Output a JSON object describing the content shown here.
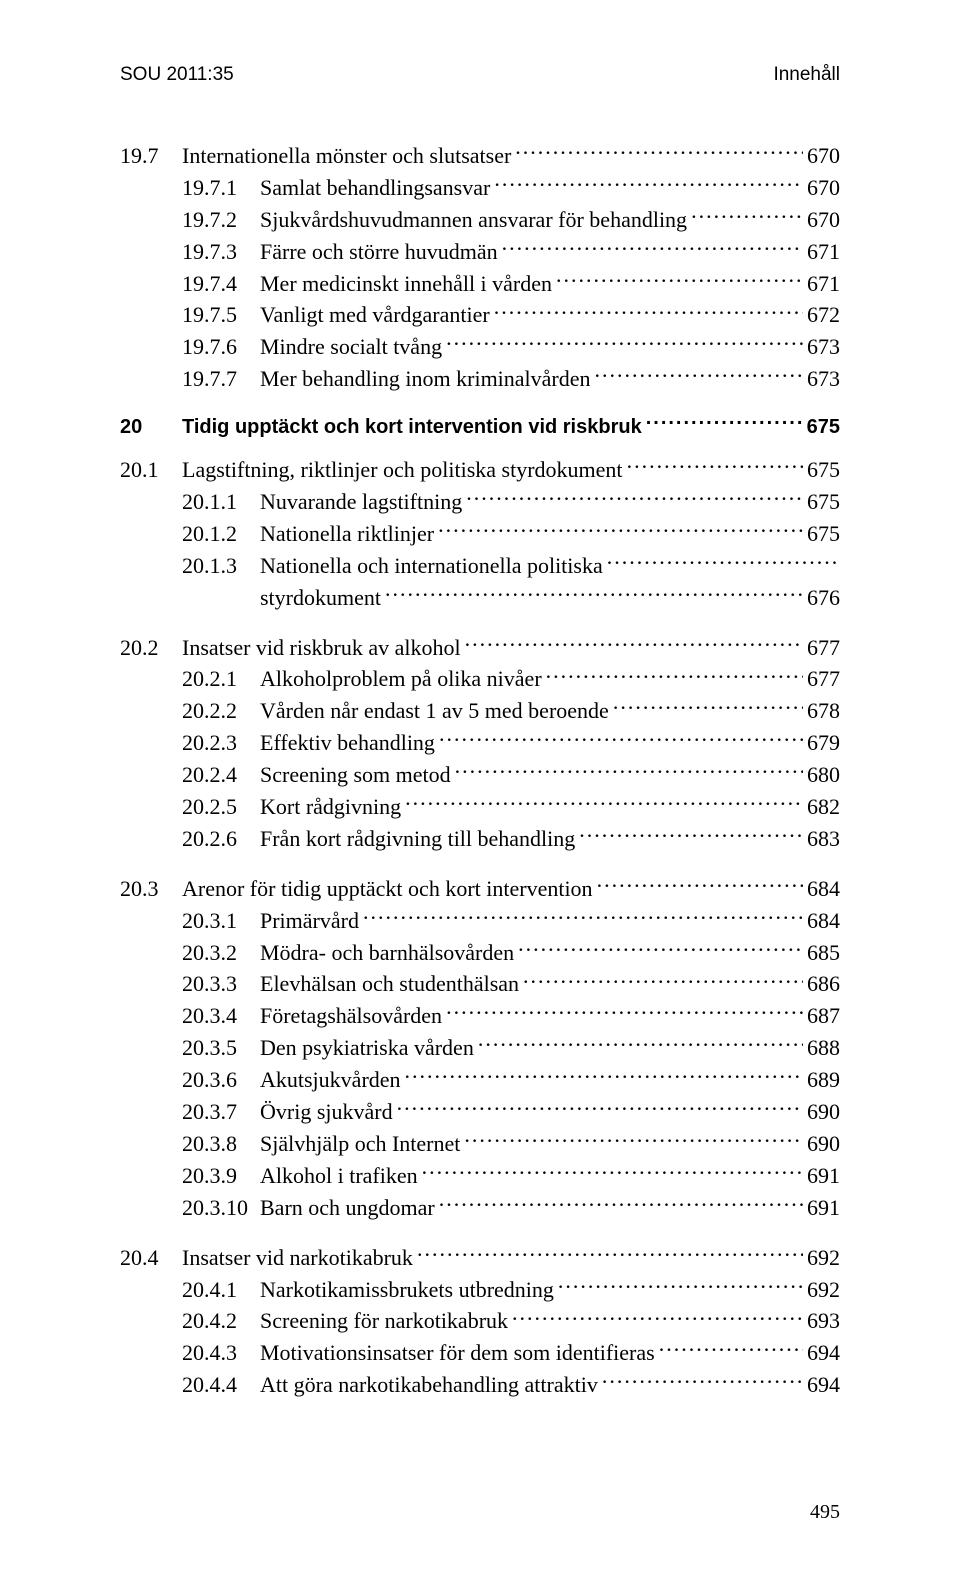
{
  "header": {
    "left": "SOU 2011:35",
    "right": "Innehåll"
  },
  "page_number": "495",
  "toc": {
    "section_19_7": {
      "num": "19.7",
      "label": "Internationella mönster och slutsatser",
      "page": "670",
      "items": [
        {
          "num": "19.7.1",
          "label": "Samlat behandlingsansvar",
          "page": "670"
        },
        {
          "num": "19.7.2",
          "label": "Sjukvårdshuvudmannen ansvarar för behandling",
          "page": "670"
        },
        {
          "num": "19.7.3",
          "label": "Färre och större huvudmän",
          "page": "671"
        },
        {
          "num": "19.7.4",
          "label": "Mer medicinskt innehåll i vården",
          "page": "671"
        },
        {
          "num": "19.7.5",
          "label": "Vanligt med vårdgarantier",
          "page": "672"
        },
        {
          "num": "19.7.6",
          "label": "Mindre socialt tvång",
          "page": "673"
        },
        {
          "num": "19.7.7",
          "label": "Mer behandling inom kriminalvården",
          "page": "673"
        }
      ]
    },
    "chapter_20": {
      "num": "20",
      "label": "Tidig upptäckt och kort intervention vid riskbruk",
      "page": "675"
    },
    "section_20_1": {
      "num": "20.1",
      "label": "Lagstiftning, riktlinjer och politiska styrdokument",
      "page": "675",
      "items": [
        {
          "num": "20.1.1",
          "label": "Nuvarande lagstiftning",
          "page": "675"
        },
        {
          "num": "20.1.2",
          "label": "Nationella riktlinjer",
          "page": "675"
        },
        {
          "num": "20.1.3",
          "label": "Nationella och internationella politiska",
          "cont": "styrdokument",
          "page": "676"
        }
      ]
    },
    "section_20_2": {
      "num": "20.2",
      "label": "Insatser vid riskbruk av alkohol",
      "page": "677",
      "items": [
        {
          "num": "20.2.1",
          "label": "Alkoholproblem på olika nivåer",
          "page": "677"
        },
        {
          "num": "20.2.2",
          "label": "Vården når endast 1 av 5 med beroende",
          "page": "678"
        },
        {
          "num": "20.2.3",
          "label": "Effektiv behandling",
          "page": "679"
        },
        {
          "num": "20.2.4",
          "label": "Screening som metod",
          "page": "680"
        },
        {
          "num": "20.2.5",
          "label": "Kort rådgivning",
          "page": "682"
        },
        {
          "num": "20.2.6",
          "label": "Från kort rådgivning till behandling",
          "page": "683"
        }
      ]
    },
    "section_20_3": {
      "num": "20.3",
      "label": "Arenor för tidig upptäckt och kort intervention",
      "page": "684",
      "items": [
        {
          "num": "20.3.1",
          "label": "Primärvård",
          "page": "684"
        },
        {
          "num": "20.3.2",
          "label": "Mödra- och barnhälsovården",
          "page": "685"
        },
        {
          "num": "20.3.3",
          "label": "Elevhälsan och studenthälsan",
          "page": "686"
        },
        {
          "num": "20.3.4",
          "label": "Företagshälsovården",
          "page": "687"
        },
        {
          "num": "20.3.5",
          "label": "Den psykiatriska vården",
          "page": "688"
        },
        {
          "num": "20.3.6",
          "label": "Akutsjukvården",
          "page": "689"
        },
        {
          "num": "20.3.7",
          "label": "Övrig sjukvård",
          "page": "690"
        },
        {
          "num": "20.3.8",
          "label": "Självhjälp och Internet",
          "page": "690"
        },
        {
          "num": "20.3.9",
          "label": "Alkohol i trafiken",
          "page": "691"
        },
        {
          "num": "20.3.10",
          "label": "Barn och ungdomar",
          "page": "691"
        }
      ]
    },
    "section_20_4": {
      "num": "20.4",
      "label": "Insatser vid narkotikabruk",
      "page": "692",
      "items": [
        {
          "num": "20.4.1",
          "label": "Narkotikamissbrukets utbredning",
          "page": "692"
        },
        {
          "num": "20.4.2",
          "label": "Screening för narkotikabruk",
          "page": "693"
        },
        {
          "num": "20.4.3",
          "label": "Motivationsinsatser för dem som identifieras",
          "page": "694"
        },
        {
          "num": "20.4.4",
          "label": "Att göra narkotikabehandling attraktiv",
          "page": "694"
        }
      ]
    }
  }
}
